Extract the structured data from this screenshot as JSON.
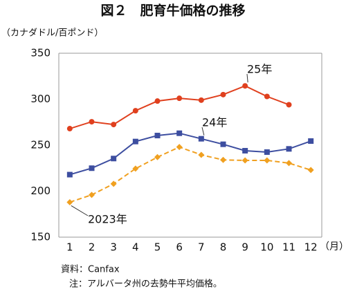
{
  "chart_data": {
    "type": "line",
    "title": "図２　肥育牛価格の推移",
    "y_label": "（カナダドル/百ポンド）",
    "x_label": "（月）",
    "categories": [
      "1",
      "2",
      "3",
      "4",
      "5",
      "6",
      "7",
      "8",
      "9",
      "10",
      "11",
      "12"
    ],
    "series": [
      {
        "name": "2023年",
        "color": "#f0a020",
        "dashed": true,
        "marker": "diamond",
        "values": [
          188,
          196,
          208,
          224.5,
          237,
          248,
          239.5,
          234,
          233.5,
          233.5,
          230.5,
          223
        ]
      },
      {
        "name": "24年",
        "color": "#3d4ea0",
        "dashed": false,
        "marker": "square",
        "values": [
          218,
          225,
          235.5,
          254,
          260.5,
          263,
          257,
          251,
          244,
          242.5,
          246,
          254.5
        ]
      },
      {
        "name": "25年",
        "color": "#e0401e",
        "dashed": false,
        "marker": "circle",
        "values": [
          268,
          275.5,
          272.5,
          287.5,
          298,
          301,
          299,
          305,
          314.5,
          303,
          294,
          null
        ]
      }
    ],
    "ylim": [
      150,
      350
    ],
    "yticks": [
      150,
      200,
      250,
      300,
      350
    ],
    "grid": false,
    "notes": [
      "資料：Canfax",
      "注：アルバータ州の去勢牛平均価格。"
    ]
  }
}
